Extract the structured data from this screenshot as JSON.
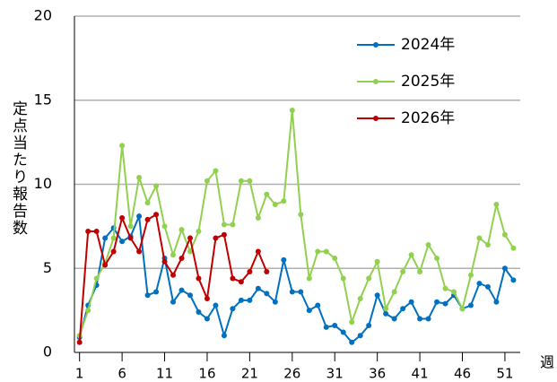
{
  "chart_data": {
    "type": "line",
    "ylabel": "定点当たり報告数",
    "xlabel": "週",
    "xlim": [
      0.4,
      52.8
    ],
    "xticks": [
      1,
      6,
      11,
      16,
      21,
      26,
      31,
      36,
      41,
      46,
      51
    ],
    "ylim": [
      0,
      20
    ],
    "yticks": [
      0,
      5,
      10,
      15,
      20
    ],
    "grid": true,
    "series": [
      {
        "name": "2024年",
        "color": "#0070c0",
        "x": [
          1,
          2,
          3,
          4,
          5,
          6,
          7,
          8,
          9,
          10,
          11,
          12,
          13,
          14,
          15,
          16,
          17,
          18,
          19,
          20,
          21,
          22,
          23,
          24,
          25,
          26,
          27,
          28,
          29,
          30,
          31,
          32,
          33,
          34,
          35,
          36,
          37,
          38,
          39,
          40,
          41,
          42,
          43,
          44,
          45,
          46,
          47,
          48,
          49,
          50,
          51,
          52
        ],
        "values": [
          0.9,
          2.8,
          4.0,
          6.8,
          7.4,
          6.6,
          6.9,
          8.1,
          3.4,
          3.6,
          5.6,
          3.0,
          3.7,
          3.4,
          2.4,
          2.0,
          2.8,
          1.0,
          2.6,
          3.1,
          3.1,
          3.8,
          3.5,
          3.0,
          5.5,
          3.6,
          3.6,
          2.5,
          2.8,
          1.5,
          1.6,
          1.2,
          0.6,
          1.0,
          1.6,
          3.4,
          2.3,
          2.0,
          2.6,
          3.0,
          2.0,
          2.0,
          3.0,
          2.9,
          3.4,
          2.6,
          2.8,
          4.1,
          3.9,
          3.0,
          5.0,
          4.3
        ]
      },
      {
        "name": "2025年",
        "color": "#92d050",
        "x": [
          1,
          2,
          3,
          4,
          5,
          6,
          7,
          8,
          9,
          10,
          11,
          12,
          13,
          14,
          15,
          16,
          17,
          18,
          19,
          20,
          21,
          22,
          23,
          24,
          25,
          26,
          27,
          28,
          29,
          30,
          31,
          32,
          33,
          34,
          35,
          36,
          37,
          38,
          39,
          40,
          41,
          42,
          43,
          44,
          45,
          46,
          47,
          48,
          49,
          50,
          51,
          52
        ],
        "values": [
          1.0,
          2.5,
          4.4,
          5.3,
          6.8,
          12.3,
          7.5,
          10.4,
          8.9,
          9.9,
          7.5,
          5.8,
          7.3,
          6.0,
          7.2,
          10.2,
          10.8,
          7.6,
          7.6,
          10.2,
          10.2,
          8.0,
          9.4,
          8.8,
          9.0,
          14.4,
          8.2,
          4.4,
          6.0,
          6.0,
          5.6,
          4.4,
          1.8,
          3.2,
          4.4,
          5.4,
          2.6,
          3.6,
          4.8,
          5.8,
          4.8,
          6.4,
          5.6,
          3.8,
          3.6,
          2.6,
          4.6,
          6.8,
          6.4,
          8.8,
          7.0,
          6.2
        ]
      },
      {
        "name": "2026年",
        "color": "#c00000",
        "x": [
          1,
          2,
          3,
          4,
          5,
          6,
          7,
          8,
          9,
          10,
          11,
          12,
          13,
          14,
          15,
          16,
          17,
          18,
          19,
          20,
          21,
          22,
          23
        ],
        "values": [
          0.6,
          7.2,
          7.2,
          5.2,
          6.0,
          8.0,
          6.8,
          6.0,
          7.9,
          8.2,
          5.4,
          4.6,
          5.6,
          6.8,
          4.4,
          3.2,
          6.8,
          7.0,
          4.4,
          4.2,
          4.8,
          6.0,
          4.8
        ]
      }
    ]
  }
}
